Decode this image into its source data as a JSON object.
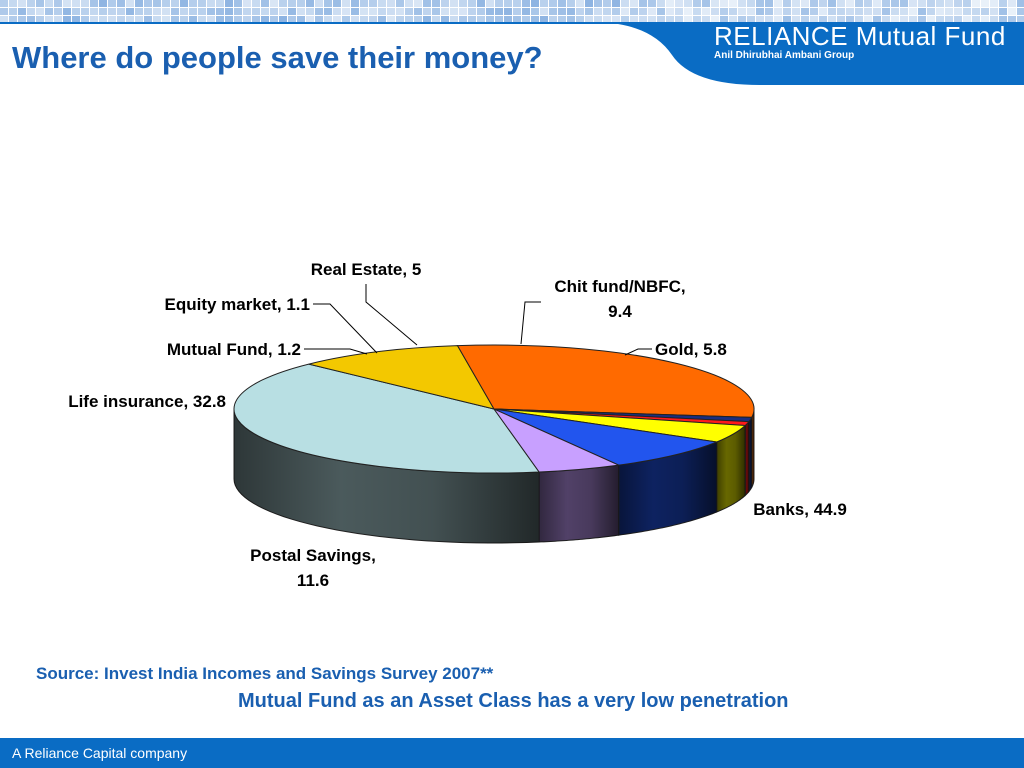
{
  "header": {
    "title": "Where do people save their money?",
    "brand_name": "RELIANCE",
    "brand_product": "Mutual Fund",
    "brand_group": "Anil Dhirubhai Ambani Group"
  },
  "chart_data": {
    "type": "pie",
    "title": "",
    "slices": [
      {
        "label": "Banks",
        "value": 44.9,
        "text_lines": [
          "Banks, 44.9"
        ],
        "color": "#b8dfe3"
      },
      {
        "label": "Postal Savings",
        "value": 11.6,
        "text_lines": [
          "Postal Savings,",
          "11.6"
        ],
        "color": "#f3c800"
      },
      {
        "label": "Life insurance",
        "value": 32.8,
        "text_lines": [
          "Life insurance, 32.8"
        ],
        "color": "#ff6a00"
      },
      {
        "label": "Mutual Fund",
        "value": 1.2,
        "text_lines": [
          "Mutual Fund, 1.2"
        ],
        "color": "#1a2e80"
      },
      {
        "label": "Equity market",
        "value": 1.1,
        "text_lines": [
          "Equity market, 1.1"
        ],
        "color": "#ff1a1a"
      },
      {
        "label": "Real Estate",
        "value": 5,
        "text_lines": [
          "Real Estate, 5"
        ],
        "color": "#ffff00"
      },
      {
        "label": "Chit fund/NBFC",
        "value": 9.4,
        "text_lines": [
          "Chit fund/NBFC,",
          "9.4"
        ],
        "color": "#2255ee"
      },
      {
        "label": "Gold",
        "value": 5.8,
        "text_lines": [
          "Gold, 5.8"
        ],
        "color": "#c8a0ff"
      }
    ]
  },
  "source": "Source: Invest India Incomes and Savings Survey 2007**",
  "note": "Mutual Fund as an Asset Class has a  very low penetration",
  "footer": {
    "text": "A Reliance Capital company"
  }
}
